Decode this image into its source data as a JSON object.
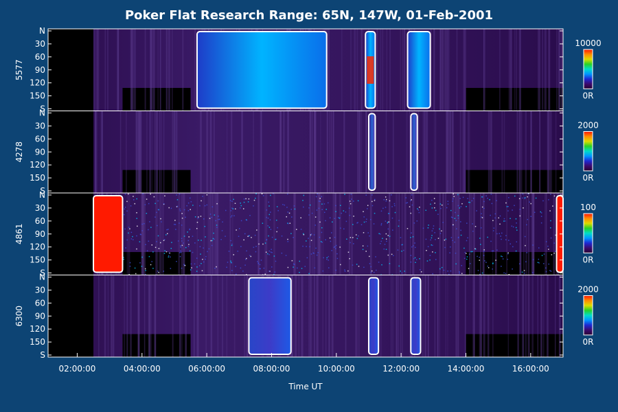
{
  "chart_data": {
    "type": "heatmap",
    "title": "Poker Flat Research Range: 65N, 147W, 01-Feb-2001",
    "xlabel": "Time UT",
    "x_ticks": [
      "02:00:00",
      "04:00:00",
      "06:00:00",
      "08:00:00",
      "10:00:00",
      "12:00:00",
      "14:00:00",
      "16:00:00"
    ],
    "x_range_hours": [
      1.1,
      17.0
    ],
    "y_scan_ticks": [
      "N",
      "30",
      "60",
      "90",
      "120",
      "150",
      "S"
    ],
    "y_scan_range_deg": [
      0,
      180
    ],
    "data_window_hours": [
      2.5,
      17.0
    ],
    "panels": [
      {
        "wavelength": "5577",
        "colorbar_max_label": "10000",
        "colorbar_min_label": "0R",
        "colorbar_max": 10000,
        "bright_regions_hours": [
          [
            5.7,
            9.7
          ],
          [
            10.9,
            11.2
          ],
          [
            12.2,
            12.9
          ]
        ]
      },
      {
        "wavelength": "4278",
        "colorbar_max_label": "2000",
        "colorbar_min_label": "0R",
        "colorbar_max": 2000,
        "bright_regions_hours": [
          [
            11.0,
            11.2
          ],
          [
            12.3,
            12.5
          ]
        ]
      },
      {
        "wavelength": "4861",
        "colorbar_max_label": "100",
        "colorbar_min_label": "0R",
        "colorbar_max": 100,
        "bright_regions_hours": [
          [
            2.5,
            3.4
          ],
          [
            16.8,
            17.0
          ]
        ]
      },
      {
        "wavelength": "6300",
        "colorbar_max_label": "2000",
        "colorbar_min_label": "0R",
        "colorbar_max": 2000,
        "bright_regions_hours": [
          [
            7.3,
            8.6
          ],
          [
            11.0,
            11.3
          ],
          [
            12.3,
            12.6
          ]
        ]
      }
    ],
    "colormap": [
      "#280032",
      "#3c0a6e",
      "#1e28d2",
      "#0096ff",
      "#00dcc8",
      "#28d228",
      "#dcdc00",
      "#ff8c00",
      "#ff1400"
    ]
  }
}
